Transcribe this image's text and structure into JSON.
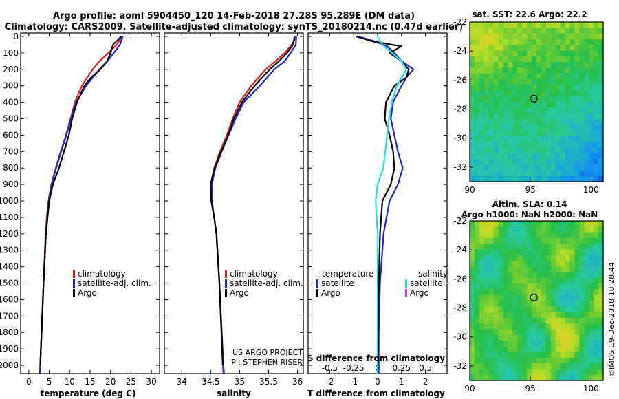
{
  "header": {
    "line1": "Argo profile: aoml 5904450_120 14-Feb-2018 27.28S 95.289E (DM data)",
    "line2": "Climatology: CARS2009. Satellite-adjusted climatology: synTS_20180214.nc (0.47d earlier)"
  },
  "colors": {
    "climatology": "#dd1c1c",
    "satellite": "#1e28cc",
    "argo": "#000000",
    "sat_salinity": "#22dede",
    "argo_salinity": "#ee22ee"
  },
  "credits": {
    "project": "US ARGO PROJECT",
    "pi": "PI: STEPHEN RISER",
    "stamp": "©IMOS 19-Dec-2018 18:28:44"
  },
  "legend_temp": [
    "climatology",
    "satellite-adj. clim.",
    "Argo"
  ],
  "legend_sal": [
    "climatology",
    "satellite-adj. clim.",
    "Argo"
  ],
  "legend_diff": {
    "temp_title": "temperature",
    "sal_title": "salinity",
    "temp_items": [
      "satellite",
      "Argo"
    ],
    "sal_items": [
      "satellite",
      "Argo"
    ]
  },
  "map_sst": {
    "title": "sat. SST: 22.6 Argo: 22.2",
    "xticks": [
      "90",
      "95",
      "100"
    ],
    "yticks": [
      "-22",
      "-24",
      "-26",
      "-28",
      "-30",
      "-32"
    ],
    "marker_lon": 95.289,
    "marker_lat": -27.28,
    "xlim": [
      90,
      101
    ],
    "ylim": [
      -33,
      -22
    ]
  },
  "map_sla": {
    "title1": "Altim. SLA: 0.14",
    "title2": "Argo h1000: NaN h2000: NaN",
    "xticks": [
      "90",
      "95",
      "100"
    ],
    "yticks": [
      "-22",
      "-24",
      "-26",
      "-28",
      "-30",
      "-32"
    ],
    "marker_lon": 95.289,
    "marker_lat": -27.28,
    "xlim": [
      90,
      101
    ],
    "ylim": [
      -33,
      -22
    ]
  },
  "chart_data": [
    {
      "type": "line",
      "id": "temperature",
      "xlabel": "temperature (deg C)",
      "ylabel": "",
      "xlim": [
        -2,
        32
      ],
      "ylim": [
        2050,
        0
      ],
      "xticks": [
        0,
        5,
        10,
        15,
        20,
        25,
        30
      ],
      "xtick_labels": [
        "0",
        "5",
        "10",
        "15",
        "20",
        "25",
        "30"
      ],
      "yticks": [
        0,
        100,
        200,
        300,
        400,
        500,
        600,
        700,
        800,
        900,
        1000,
        1100,
        1200,
        1300,
        1400,
        1500,
        1600,
        1700,
        1800,
        1900,
        2000
      ],
      "ytick_labels": [
        "0",
        "100",
        "200",
        "300",
        "400",
        "500",
        "600",
        "700",
        "800",
        "900",
        "1000",
        "1100",
        "1200",
        "1300",
        "1400",
        "1500",
        "1600",
        "1700",
        "1800",
        "1900",
        "2000"
      ],
      "series": [
        {
          "name": "climatology",
          "color_key": "climatology",
          "depth": [
            0,
            50,
            100,
            150,
            200,
            300,
            400,
            500,
            600,
            700,
            800,
            900,
            1000,
            1100,
            1200,
            1500,
            2000,
            2050
          ],
          "values": [
            22.8,
            21.5,
            19.5,
            17.3,
            15.6,
            13.0,
            11.3,
            10.2,
            9.1,
            7.8,
            6.6,
            5.5,
            4.8,
            4.4,
            4.1,
            3.6,
            2.8,
            2.7
          ]
        },
        {
          "name": "satellite-adj. clim.",
          "color_key": "satellite",
          "depth": [
            0,
            50,
            100,
            150,
            200,
            300,
            400,
            500,
            600,
            700,
            800,
            900,
            1000,
            1100,
            1200,
            1500,
            2000,
            2050
          ],
          "values": [
            23.0,
            22.3,
            20.8,
            19.2,
            17.3,
            14.0,
            11.6,
            10.3,
            9.2,
            7.9,
            6.7,
            5.6,
            4.9,
            4.5,
            4.2,
            3.6,
            2.8,
            2.7
          ]
        },
        {
          "name": "Argo",
          "color_key": "argo",
          "depth": [
            0,
            50,
            100,
            150,
            200,
            250,
            300,
            400,
            500,
            600,
            700,
            800,
            900,
            1000,
            1100,
            1200,
            1500,
            2000
          ],
          "values": [
            22.6,
            20.6,
            20.0,
            19.2,
            17.5,
            15.2,
            13.6,
            11.8,
            10.6,
            9.8,
            8.6,
            7.4,
            5.9,
            5.0,
            4.6,
            4.2,
            3.6,
            2.8
          ]
        }
      ]
    },
    {
      "type": "line",
      "id": "salinity",
      "xlabel": "salinity",
      "ylabel": "",
      "xlim": [
        33.7,
        36.1
      ],
      "ylim": [
        2050,
        0
      ],
      "xticks": [
        34,
        34.5,
        35,
        35.5,
        36
      ],
      "xtick_labels": [
        "34",
        "34.5",
        "35",
        "35.5",
        "36"
      ],
      "series": [
        {
          "name": "climatology",
          "color_key": "climatology",
          "depth": [
            0,
            50,
            100,
            150,
            200,
            300,
            400,
            500,
            600,
            700,
            800,
            900,
            1000,
            1100,
            1200,
            1500,
            2000,
            2050
          ],
          "values": [
            35.98,
            35.9,
            35.78,
            35.62,
            35.45,
            35.2,
            35.0,
            34.88,
            34.78,
            34.66,
            34.56,
            34.5,
            34.52,
            34.56,
            34.6,
            34.65,
            34.71,
            34.72
          ]
        },
        {
          "name": "satellite-adj. clim.",
          "color_key": "satellite",
          "depth": [
            0,
            50,
            100,
            150,
            200,
            300,
            400,
            500,
            600,
            700,
            800,
            900,
            1000,
            1100,
            1200,
            1500,
            2000,
            2050
          ],
          "values": [
            35.98,
            35.97,
            35.88,
            35.78,
            35.6,
            35.35,
            35.07,
            34.93,
            34.81,
            34.69,
            34.58,
            34.52,
            34.52,
            34.56,
            34.6,
            34.65,
            34.72,
            34.73
          ]
        },
        {
          "name": "Argo",
          "color_key": "argo",
          "depth": [
            0,
            50,
            100,
            150,
            200,
            300,
            400,
            500,
            600,
            700,
            800,
            900,
            1000,
            1100,
            1200,
            1500,
            2000
          ],
          "values": [
            35.95,
            35.92,
            35.82,
            35.68,
            35.52,
            35.26,
            35.04,
            34.9,
            34.8,
            34.68,
            34.57,
            34.5,
            34.51,
            34.56,
            34.6,
            34.65,
            34.71
          ]
        }
      ]
    },
    {
      "type": "line",
      "id": "difference",
      "xlabel": "T difference from climatology",
      "top_label": "S difference from climatology",
      "xlim": [
        -2.9,
        2.9
      ],
      "ylim": [
        2050,
        0
      ],
      "xticks": [
        -2,
        -1,
        0,
        1,
        2
      ],
      "xtick_labels": [
        "-2",
        "-1",
        "0",
        "1",
        "2"
      ],
      "s_ticks": [
        -0.5,
        -0.25,
        0,
        0.25,
        0.5
      ],
      "s_tick_labels": [
        "-0.5",
        "-0.25",
        "0",
        "0.25",
        "0.5"
      ],
      "s_scale": 4,
      "series": [
        {
          "name": "temperature satellite",
          "color_key": "satellite",
          "depth": [
            0,
            30,
            60,
            100,
            150,
            200,
            250,
            300,
            400,
            500,
            600,
            700,
            800,
            900,
            1000,
            1200,
            1500,
            1800,
            2000,
            2050
          ],
          "values": [
            -0.8,
            -0.1,
            0.4,
            0.7,
            1.0,
            1.5,
            1.2,
            1.0,
            0.65,
            0.55,
            0.7,
            0.85,
            1.05,
            0.85,
            0.5,
            0.25,
            0.1,
            0.05,
            0.05,
            0.05
          ]
        },
        {
          "name": "temperature Argo",
          "color_key": "argo",
          "depth": [
            0,
            30,
            60,
            100,
            150,
            200,
            250,
            300,
            400,
            500,
            600,
            700,
            800,
            900,
            1000,
            1200,
            1500,
            1800,
            2000
          ],
          "values": [
            -0.9,
            -0.2,
            1.0,
            0.5,
            1.0,
            1.3,
            1.2,
            0.7,
            0.35,
            0.3,
            0.5,
            0.65,
            0.7,
            0.55,
            0.2,
            0.1,
            0.05,
            0.03,
            0.02
          ]
        },
        {
          "name": "salinity satellite",
          "color_key": "sat_salinity",
          "depth": [
            0,
            50,
            100,
            150,
            200,
            300,
            400,
            500,
            600,
            700,
            800,
            900,
            1000,
            1200,
            1500,
            1800,
            2000,
            2050
          ],
          "values": [
            0.0,
            0.05,
            0.15,
            0.25,
            0.3,
            0.2,
            0.15,
            0.12,
            0.1,
            0.08,
            0.06,
            0.0,
            -0.02,
            0.0,
            0.0,
            0.0,
            0.0,
            0.0
          ]
        }
      ]
    }
  ]
}
